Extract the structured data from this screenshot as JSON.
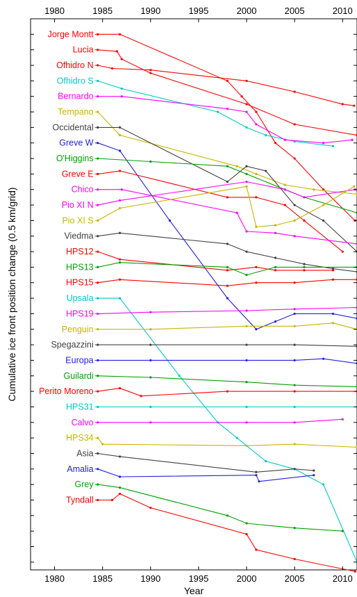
{
  "chart_data": {
    "type": "line",
    "xlabel": "Year",
    "ylabel": "Cumulative ice front position change (0.5 km/grid)",
    "xlim": [
      1977.5,
      2011.5
    ],
    "xticks": [
      1980,
      1985,
      1990,
      1995,
      2000,
      2005,
      2010
    ],
    "ylim": [
      -34.5,
      1
    ],
    "grid": false,
    "legend": "labels-left-of-lines",
    "series": [
      {
        "name": "Jorge Montt",
        "color": "#ff0000",
        "baseline": 0,
        "points": [
          [
            1984.5,
            0
          ],
          [
            1986.8,
            0
          ],
          [
            1998,
            -3
          ],
          [
            1999.5,
            -4
          ],
          [
            2001,
            -5
          ],
          [
            2003,
            -7
          ],
          [
            2005,
            -8
          ],
          [
            2008,
            -10
          ],
          [
            2011.3,
            -12
          ]
        ]
      },
      {
        "name": "Lucia",
        "color": "#ff0000",
        "baseline": -1,
        "points": [
          [
            1984.5,
            -1
          ],
          [
            1986.5,
            -1.1
          ],
          [
            1987,
            -1.6
          ],
          [
            1990,
            -2.5
          ],
          [
            2000,
            -4.5
          ],
          [
            2005,
            -5.8
          ],
          [
            2011.5,
            -6.5
          ]
        ]
      },
      {
        "name": "Ofhidro N",
        "color": "#ff0000",
        "baseline": -2,
        "points": [
          [
            1984.5,
            -2
          ],
          [
            1986,
            -2.2
          ],
          [
            1990,
            -2.3
          ],
          [
            2000,
            -3
          ],
          [
            2005,
            -3.7
          ],
          [
            2010,
            -4.5
          ],
          [
            2011.2,
            -4.6
          ]
        ]
      },
      {
        "name": "Ofhidro S",
        "color": "#00c8c8",
        "baseline": -3,
        "points": [
          [
            1984.5,
            -3
          ],
          [
            1987,
            -3.5
          ],
          [
            1997,
            -5
          ],
          [
            2000,
            -6
          ],
          [
            2002,
            -6.5
          ],
          [
            2005,
            -6.9
          ],
          [
            2009,
            -7.2
          ]
        ]
      },
      {
        "name": "Bernardo",
        "color": "#ff00ff",
        "baseline": -4,
        "points": [
          [
            1984.5,
            -4
          ],
          [
            1987,
            -4
          ],
          [
            1998,
            -4.8
          ],
          [
            2000,
            -5
          ],
          [
            2001,
            -5.8
          ],
          [
            2004,
            -6.8
          ],
          [
            2008,
            -7
          ],
          [
            2011,
            -6.8
          ]
        ]
      },
      {
        "name": "Tempano",
        "color": "#c8b400",
        "baseline": -5,
        "points": [
          [
            1984.5,
            -5
          ],
          [
            1986.8,
            -6.5
          ],
          [
            1999,
            -8.5
          ],
          [
            2001,
            -9
          ],
          [
            2004,
            -9.7
          ],
          [
            2007,
            -10
          ],
          [
            2011.5,
            -10.3
          ]
        ]
      },
      {
        "name": "Occidental",
        "color": "#404040",
        "baseline": -6,
        "points": [
          [
            1984.5,
            -6
          ],
          [
            1986.8,
            -6
          ],
          [
            1998,
            -9.5
          ],
          [
            2000,
            -8.5
          ],
          [
            2002,
            -8.8
          ],
          [
            2005,
            -11
          ],
          [
            2008,
            -12
          ],
          [
            2011.5,
            -14
          ]
        ]
      },
      {
        "name": "Greve W",
        "color": "#2020e0",
        "baseline": -7,
        "points": [
          [
            1984.5,
            -7
          ],
          [
            1986.8,
            -7.5
          ],
          [
            1992,
            -12
          ],
          [
            1998,
            -17
          ],
          [
            2001,
            -19
          ],
          [
            2003,
            -18.5
          ],
          [
            2005,
            -18
          ],
          [
            2009,
            -18
          ],
          [
            2011.5,
            -18.3
          ]
        ]
      },
      {
        "name": "O'Higgins",
        "color": "#00a000",
        "baseline": -8,
        "points": [
          [
            1984.5,
            -8
          ],
          [
            1990,
            -8.2
          ],
          [
            1998,
            -8.5
          ],
          [
            2000,
            -9
          ],
          [
            2004,
            -10
          ],
          [
            2006,
            -10.5
          ],
          [
            2011.5,
            -11.5
          ]
        ]
      },
      {
        "name": "Greve E",
        "color": "#ff0000",
        "baseline": -9,
        "points": [
          [
            1984.5,
            -9
          ],
          [
            1986.8,
            -8.8
          ],
          [
            1998,
            -10.5
          ],
          [
            2001,
            -10.5
          ],
          [
            2004,
            -11
          ],
          [
            2006,
            -12
          ],
          [
            2010,
            -14
          ]
        ]
      },
      {
        "name": "Chico",
        "color": "#ff00ff",
        "baseline": -10,
        "points": [
          [
            1984.5,
            -10
          ],
          [
            1987,
            -10
          ],
          [
            1999,
            -11.5
          ],
          [
            2000,
            -12.7
          ],
          [
            2003,
            -12.8
          ],
          [
            2005,
            -13
          ],
          [
            2011.5,
            -13.5
          ]
        ]
      },
      {
        "name": "Pio XI N",
        "color": "#ff00ff",
        "baseline": -11,
        "points": [
          [
            1984.5,
            -11
          ],
          [
            1986.8,
            -10.7
          ],
          [
            2000,
            -9.5
          ],
          [
            2004,
            -10
          ],
          [
            2006,
            -10.5
          ],
          [
            2011.3,
            -10
          ]
        ]
      },
      {
        "name": "Pio XI S",
        "color": "#c8b400",
        "baseline": -12,
        "points": [
          [
            1984.5,
            -12
          ],
          [
            1986.8,
            -11.2
          ],
          [
            2000,
            -9.8
          ],
          [
            2001,
            -12.4
          ],
          [
            2003,
            -12.3
          ],
          [
            2005,
            -12
          ],
          [
            2008,
            -11
          ],
          [
            2011.2,
            -9.8
          ]
        ]
      },
      {
        "name": "Viedma",
        "color": "#404040",
        "baseline": -13,
        "points": [
          [
            1984.5,
            -13
          ],
          [
            1986.8,
            -12.8
          ],
          [
            1998,
            -13.5
          ],
          [
            2000,
            -14
          ],
          [
            2003,
            -14.4
          ],
          [
            2006,
            -14.8
          ],
          [
            2009,
            -15.1
          ],
          [
            2011.5,
            -15.3
          ]
        ]
      },
      {
        "name": "HPS12",
        "color": "#ff0000",
        "baseline": -14,
        "points": [
          [
            1984.5,
            -14
          ],
          [
            1986.8,
            -14.5
          ],
          [
            1998,
            -15.2
          ],
          [
            2001,
            -15
          ],
          [
            2003,
            -15.2
          ],
          [
            2006,
            -15.2
          ],
          [
            2009,
            -15.2
          ]
        ]
      },
      {
        "name": "HPS13",
        "color": "#00a000",
        "baseline": -15,
        "points": [
          [
            1984.5,
            -15
          ],
          [
            1986.8,
            -14.7
          ],
          [
            1998,
            -15
          ],
          [
            2000,
            -15.5
          ],
          [
            2003,
            -15
          ],
          [
            2006,
            -15
          ],
          [
            2011.5,
            -15
          ]
        ]
      },
      {
        "name": "HPS15",
        "color": "#ff0000",
        "baseline": -16,
        "points": [
          [
            1984.5,
            -16
          ],
          [
            1986.8,
            -15.8
          ],
          [
            1998,
            -16.2
          ],
          [
            2001,
            -16
          ],
          [
            2005,
            -16
          ],
          [
            2009,
            -15.8
          ],
          [
            2011.5,
            -15.8
          ]
        ]
      },
      {
        "name": "Upsala",
        "color": "#00c8c8",
        "baseline": -17,
        "points": [
          [
            1984.5,
            -17
          ],
          [
            1986.8,
            -17
          ],
          [
            1993,
            -22
          ],
          [
            1997,
            -25
          ],
          [
            1999,
            -26
          ],
          [
            2002,
            -27.5
          ],
          [
            2005,
            -28
          ],
          [
            2008,
            -29
          ],
          [
            2011.5,
            -34
          ]
        ]
      },
      {
        "name": "HPS19",
        "color": "#ff00ff",
        "baseline": -18,
        "points": [
          [
            1984.5,
            -18
          ],
          [
            1990,
            -17.9
          ],
          [
            2000,
            -17.8
          ],
          [
            2005,
            -17.7
          ],
          [
            2011.5,
            -17.6
          ]
        ]
      },
      {
        "name": "Penguin",
        "color": "#c8b400",
        "baseline": -19,
        "points": [
          [
            1984.5,
            -19
          ],
          [
            1990,
            -19
          ],
          [
            2000,
            -18.8
          ],
          [
            2005,
            -18.8
          ],
          [
            2009,
            -18.6
          ],
          [
            2011.5,
            -19
          ]
        ]
      },
      {
        "name": "Spegazzini",
        "color": "#404040",
        "baseline": -20,
        "points": [
          [
            1984.5,
            -20
          ],
          [
            1990,
            -20
          ],
          [
            2000,
            -20
          ],
          [
            2005,
            -20
          ],
          [
            2011.5,
            -20.1
          ]
        ]
      },
      {
        "name": "Europa",
        "color": "#2020e0",
        "baseline": -21,
        "points": [
          [
            1984.5,
            -21
          ],
          [
            1990,
            -21
          ],
          [
            2000,
            -21
          ],
          [
            2005,
            -21
          ],
          [
            2008,
            -20.9
          ],
          [
            2011.5,
            -21.2
          ]
        ]
      },
      {
        "name": "Guilardi",
        "color": "#00a000",
        "baseline": -22,
        "points": [
          [
            1984.5,
            -22
          ],
          [
            1990,
            -22.1
          ],
          [
            2000,
            -22.4
          ],
          [
            2005,
            -22.6
          ],
          [
            2011.5,
            -22.7
          ]
        ]
      },
      {
        "name": "Perito Moreno",
        "color": "#ff0000",
        "baseline": -23,
        "points": [
          [
            1984.5,
            -23
          ],
          [
            1986.8,
            -22.8
          ],
          [
            1989,
            -23.3
          ],
          [
            1998,
            -23
          ],
          [
            2005,
            -23
          ],
          [
            2011.5,
            -23
          ]
        ]
      },
      {
        "name": "HPS31",
        "color": "#00c8c8",
        "baseline": -24,
        "points": [
          [
            1984.5,
            -24
          ],
          [
            1990,
            -24
          ],
          [
            2000,
            -24
          ],
          [
            2005,
            -24
          ],
          [
            2011.5,
            -24
          ]
        ]
      },
      {
        "name": "Calvo",
        "color": "#ff00ff",
        "baseline": -25,
        "points": [
          [
            1984.5,
            -25
          ],
          [
            1990,
            -25
          ],
          [
            2000,
            -25
          ],
          [
            2005,
            -25
          ],
          [
            2010,
            -24.8
          ]
        ]
      },
      {
        "name": "HPS34",
        "color": "#c8b400",
        "baseline": -26,
        "points": [
          [
            1984.5,
            -26
          ],
          [
            1985,
            -26.4
          ],
          [
            2000,
            -26.5
          ],
          [
            2005,
            -26.4
          ],
          [
            2011.5,
            -26.6
          ]
        ]
      },
      {
        "name": "Asia",
        "color": "#404040",
        "baseline": -27,
        "points": [
          [
            1984.5,
            -27
          ],
          [
            1986.8,
            -27.2
          ],
          [
            2001,
            -28.2
          ],
          [
            2005,
            -28
          ],
          [
            2007,
            -28.1
          ]
        ]
      },
      {
        "name": "Amalia",
        "color": "#2020e0",
        "baseline": -28,
        "points": [
          [
            1984.5,
            -28
          ],
          [
            1986.8,
            -28.5
          ],
          [
            2001,
            -28.4
          ],
          [
            2001.3,
            -28.8
          ],
          [
            2007,
            -28.4
          ]
        ]
      },
      {
        "name": "Grey",
        "color": "#00a000",
        "baseline": -29,
        "points": [
          [
            1984.5,
            -29
          ],
          [
            1986.8,
            -29.2
          ],
          [
            1998,
            -31
          ],
          [
            2000,
            -31.5
          ],
          [
            2005,
            -31.8
          ],
          [
            2010,
            -32
          ]
        ]
      },
      {
        "name": "Tyndall",
        "color": "#ff0000",
        "baseline": -30,
        "points": [
          [
            1984.5,
            -30
          ],
          [
            1986,
            -30
          ],
          [
            1986.8,
            -29.6
          ],
          [
            1990,
            -30.5
          ],
          [
            2000,
            -32.2
          ],
          [
            2001,
            -33.2
          ],
          [
            2005,
            -33.8
          ],
          [
            2011.3,
            -34.6
          ]
        ]
      }
    ]
  }
}
